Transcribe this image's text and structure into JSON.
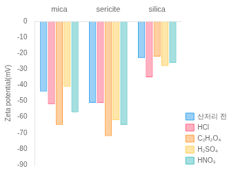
{
  "chart_data": {
    "type": "bar",
    "categories": [
      "mica",
      "sericite",
      "silica"
    ],
    "series": [
      {
        "name": "산처리 전",
        "values": [
          -44,
          -51,
          -23
        ]
      },
      {
        "name": "HCl",
        "values": [
          -52,
          -51,
          -35
        ]
      },
      {
        "name": "C₂H₂O₄",
        "values": [
          -65,
          -72,
          -22
        ]
      },
      {
        "name": "H₂SO₄",
        "values": [
          -41,
          -62,
          -28
        ]
      },
      {
        "name": "HNO₃",
        "values": [
          -57,
          -65,
          -26
        ]
      }
    ],
    "ylabel": "Zeta potential(mV)",
    "ylim": [
      -90,
      0
    ],
    "yticks": [
      0,
      -10,
      -20,
      -30,
      -40,
      -50,
      -60,
      -70,
      -80,
      -90
    ],
    "grid": false,
    "legend": "lower right"
  }
}
